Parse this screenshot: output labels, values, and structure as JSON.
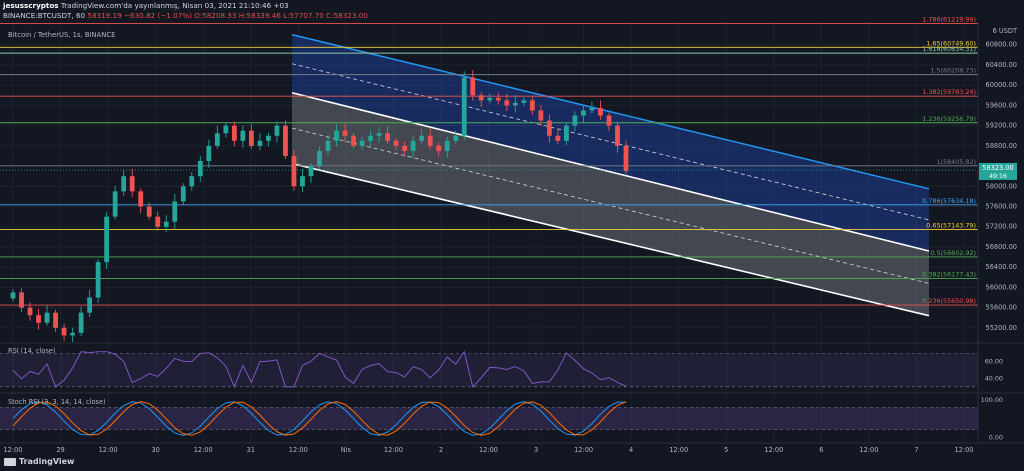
{
  "header": {
    "author": "jesusscryptos",
    "published": "TradingView.com'da yayınlanmış, Nisan 03, 2021 21:10:46 +03",
    "symbol": "BINANCE:BTCUSDT, 60",
    "last": "58319.19",
    "change": "−630.82 (−1.07%)",
    "ohlc": "O:58208.33 H:58339.46 L:57707.70 C:58323.00"
  },
  "pair_label": "Bitcoin / TetherUS, 1s, BINANCE",
  "price_axis_unit": "USDT",
  "current_price": {
    "value": "58323.00",
    "countdown": "49:16",
    "color": "#26a69a"
  },
  "colors": {
    "up": "#26a69a",
    "down": "#ef5350",
    "channel_blue": "#2962ff",
    "rsi": "#7e57c2"
  },
  "rsi_label": "RSI (14, close)",
  "stoch_label": "Stoch RSI (3, 3, 14, 14, close)",
  "brand": "TradingView",
  "chart_data": [
    {
      "type": "candlestick",
      "title": "Bitcoin / TetherUS, 1s, BINANCE",
      "x_tick_labels": [
        "12:00",
        "29",
        "12:00",
        "30",
        "12:00",
        "31",
        "12:00",
        "Nis",
        "12:00",
        "2",
        "12:00",
        "3",
        "12:00",
        "4",
        "12:00",
        "5",
        "12:00",
        "6",
        "12:00",
        "7",
        "12:00"
      ],
      "y_tick_labels": [
        "6 USDT",
        "60800.00",
        "60400.00",
        "60000.00",
        "59600.00",
        "59200.00",
        "58800.00",
        "58400.00",
        "58000.00",
        "57600.00",
        "57200.00",
        "56800.00",
        "56400.00",
        "56000.00",
        "55600.00",
        "55200.00"
      ],
      "ylim": [
        54900,
        61250
      ],
      "fib_levels": [
        {
          "ratio": "1.786",
          "price": 61219.99,
          "label": "1.786(61219.99)",
          "color": "#ef5350"
        },
        {
          "ratio": "1.65",
          "price": 60749.6,
          "label": "1.65(60749.60)",
          "color": "#f7d13b"
        },
        {
          "ratio": "1.618",
          "price": 60634.31,
          "label": "1.618(60634.31)",
          "color": "#8ec9a8"
        },
        {
          "ratio": "1.5",
          "price": 60208.73,
          "label": "1.5(60208.73)",
          "color": "#787b86"
        },
        {
          "ratio": "1.382",
          "price": 59783.24,
          "label": "1.382(59783.24)",
          "color": "#ef5350"
        },
        {
          "ratio": "1.236",
          "price": 59256.79,
          "label": "1.236(59256.79)",
          "color": "#4caf50"
        },
        {
          "ratio": "1",
          "price": 58405.82,
          "label": "1(58405.82)",
          "color": "#787b86"
        },
        {
          "ratio": "0.786",
          "price": 57634.18,
          "label": "0.786(57634.18)",
          "color": "#42a5f5"
        },
        {
          "ratio": "0.65",
          "price": 57143.79,
          "label": "0.65(57143.79)",
          "color": "#f7d13b"
        },
        {
          "ratio": "0.5",
          "price": 56602.92,
          "label": "0.5(56602.92)",
          "color": "#4caf50"
        },
        {
          "ratio": "0.382",
          "price": 56177.43,
          "label": "0.382(56177.43)",
          "color": "#4caf50"
        },
        {
          "ratio": "0.236",
          "price": 55650.98,
          "label": "0.236(55650.98)",
          "color": "#ef5350"
        }
      ],
      "channels": [
        {
          "name": "Upper descending channel",
          "start": {
            "x": "31 12:00",
            "y_top": 61000,
            "y_bottom": 59850
          },
          "end": {
            "x": "7 00:00",
            "y_top": 57950,
            "y_bottom": 56720
          }
        },
        {
          "name": "Lower descending channel",
          "start": {
            "x": "31 12:00",
            "y_top": 59850,
            "y_bottom": 58450
          },
          "end": {
            "x": "7 00:00",
            "y_top": 56720,
            "y_bottom": 55440
          }
        }
      ],
      "candles_summary": {
        "start": "28 12:00",
        "end": "3 21:00",
        "path": [
          55900,
          55600,
          55450,
          55300,
          55500,
          55200,
          55050,
          55100,
          55500,
          55800,
          56500,
          57400,
          57900,
          58200,
          57900,
          57600,
          57400,
          57200,
          57300,
          57700,
          58000,
          58200,
          58500,
          58800,
          59050,
          59200,
          58900,
          59100,
          58800,
          58900,
          59000,
          59200,
          58600,
          58000,
          58200,
          58400,
          58700,
          58900,
          59100,
          59000,
          58800,
          58900,
          59000,
          59050,
          58900,
          58800,
          58700,
          58900,
          59000,
          58800,
          58700,
          58900,
          59000,
          60150,
          59800,
          59700,
          59750,
          59700,
          59600,
          59650,
          59700,
          59500,
          59300,
          59000,
          58900,
          59200,
          59400,
          59500,
          59550,
          59400,
          59200,
          58800,
          58300
        ]
      }
    },
    {
      "type": "line",
      "title": "RSI (14, close)",
      "y_tick_labels": [
        "60.00",
        "40.00"
      ],
      "ylim": [
        25,
        80
      ],
      "bands": [
        30,
        70
      ]
    },
    {
      "type": "line",
      "title": "Stoch RSI (3, 3, 14, 14, close)",
      "y_tick_labels": [
        "100.00",
        "0.00"
      ],
      "ylim": [
        -10,
        110
      ],
      "bands": [
        20,
        80
      ],
      "series": [
        {
          "color": "#2196f3"
        },
        {
          "color": "#ff6d00"
        }
      ]
    }
  ]
}
